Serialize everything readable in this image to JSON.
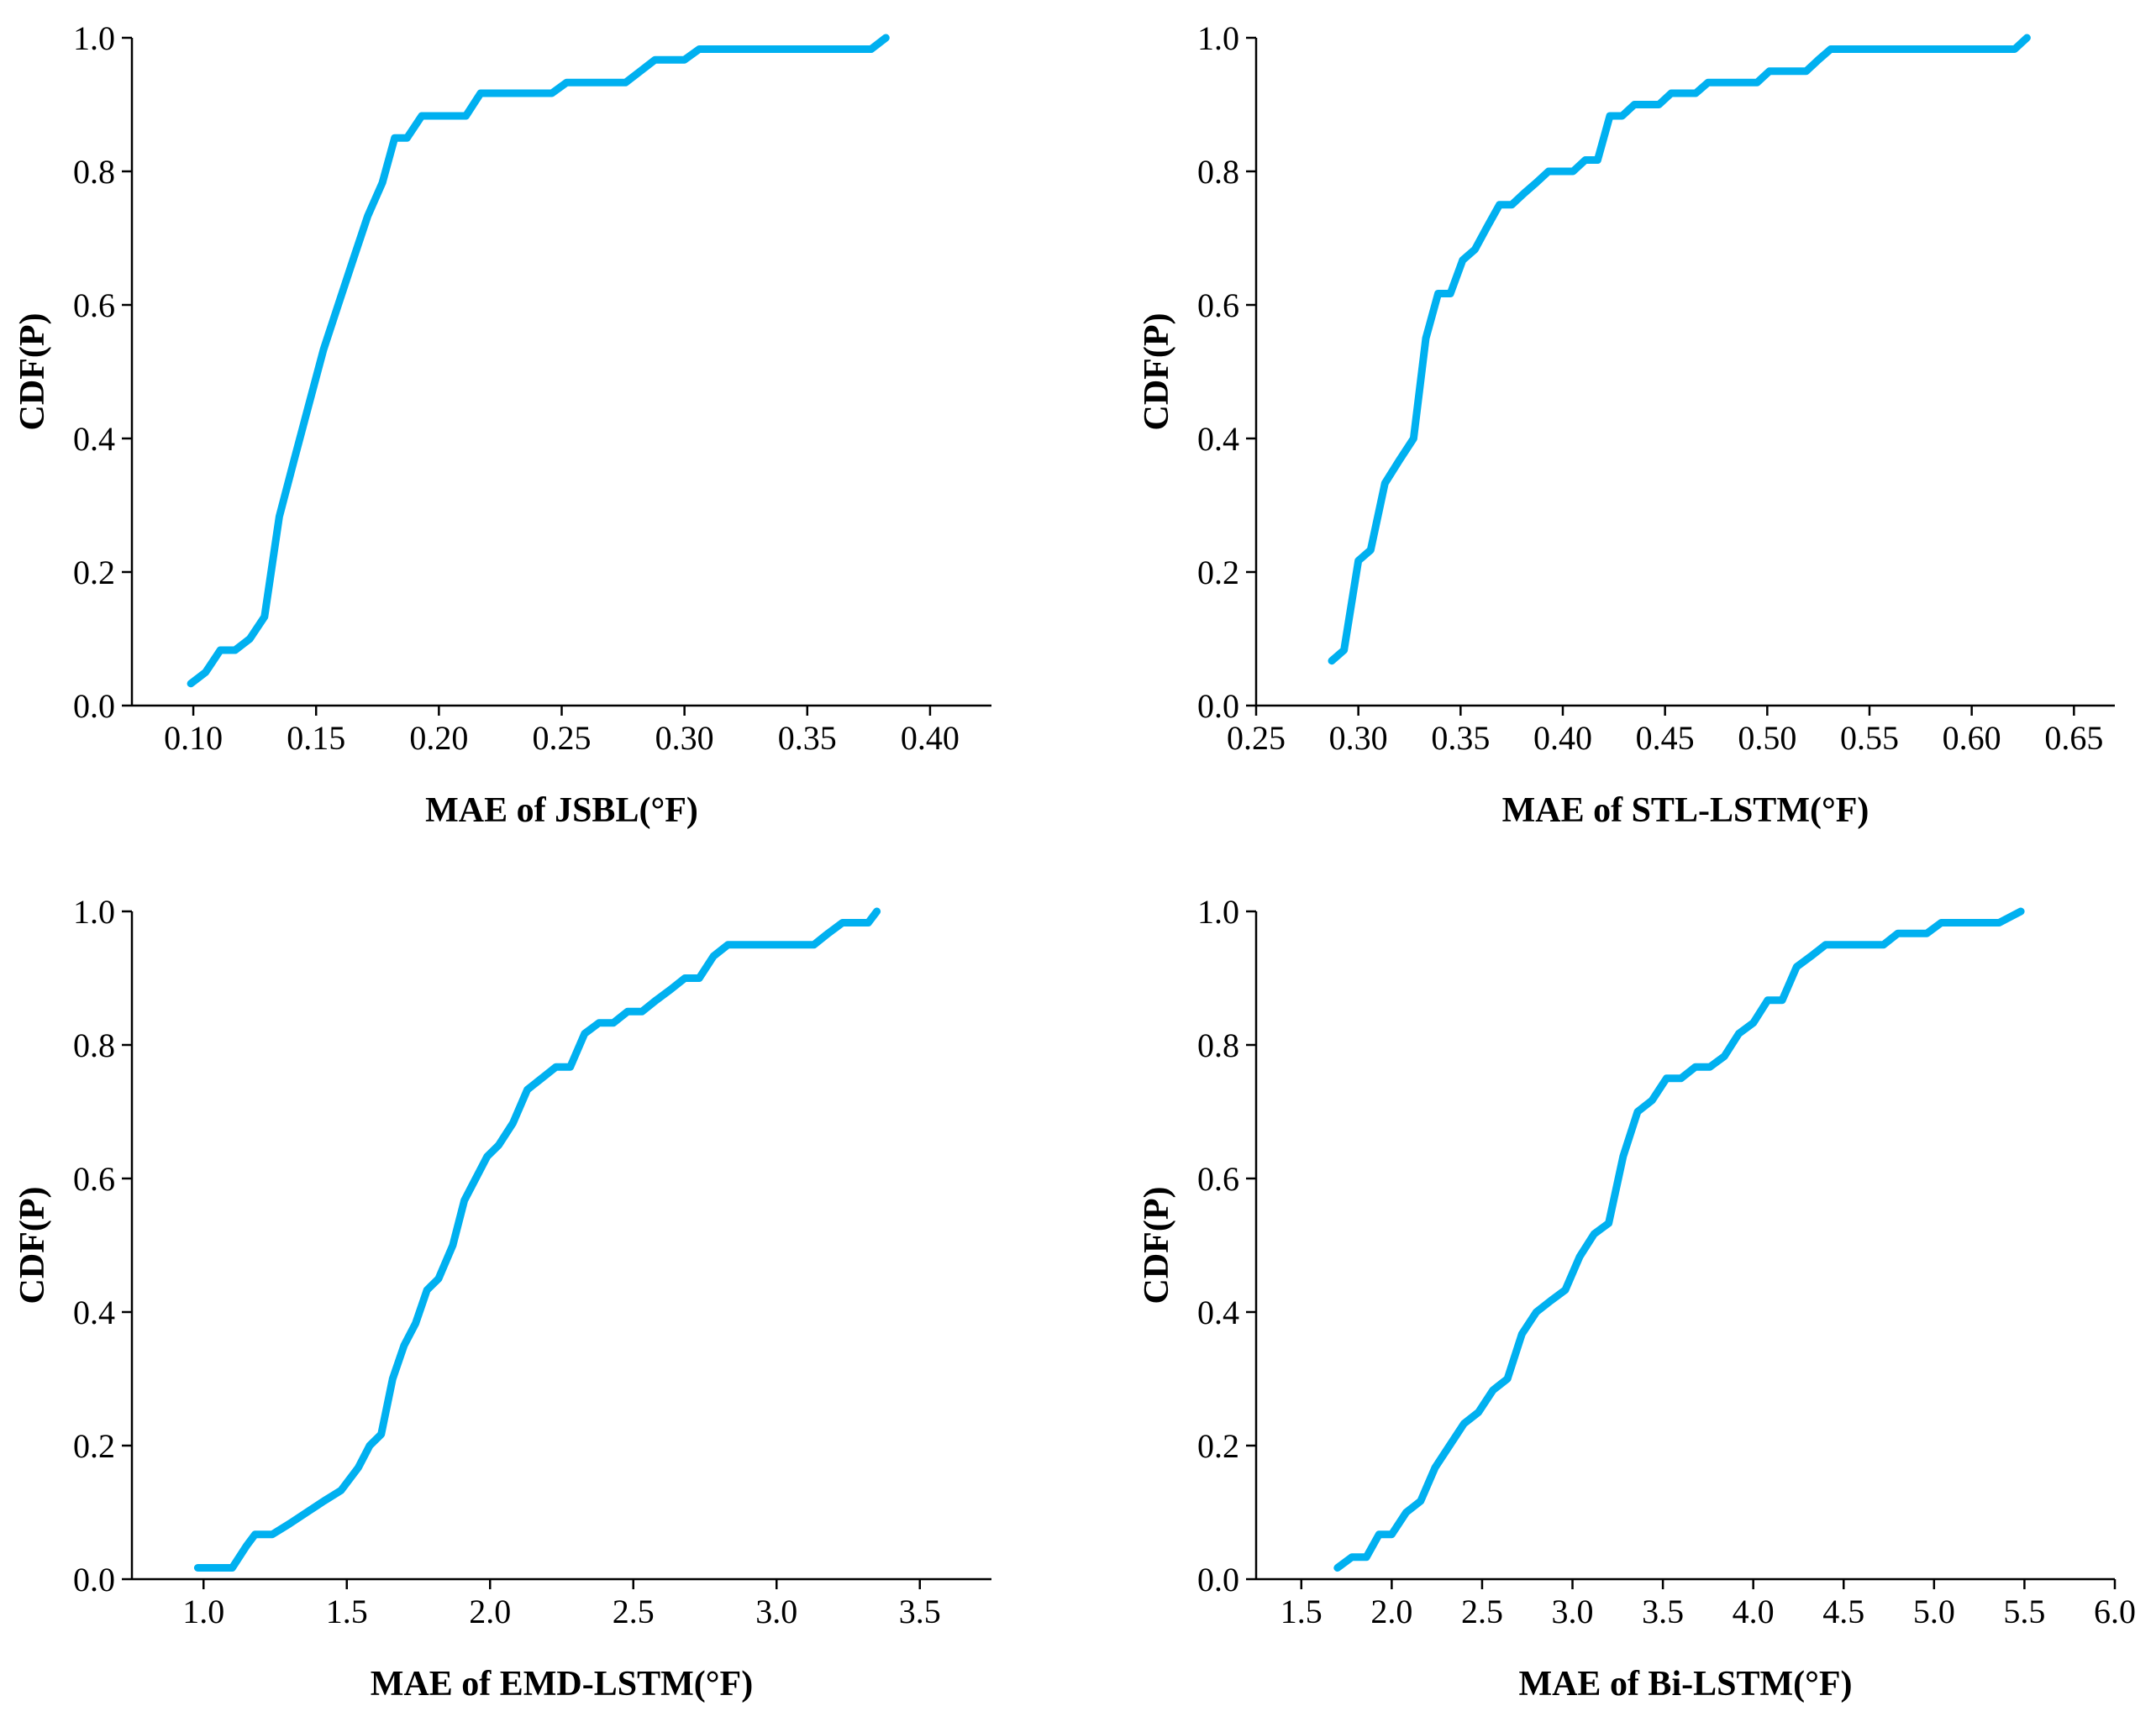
{
  "colors": {
    "series": "#00B0F0",
    "axis": "#000000",
    "background": "#FFFFFF"
  },
  "chart_data": [
    {
      "type": "line",
      "title": "",
      "xlabel": "MAE of JSBL(°F)",
      "ylabel": "CDF(P)",
      "xlim": [
        0.075,
        0.425
      ],
      "ylim": [
        0.0,
        1.0
      ],
      "xticks": [
        0.1,
        0.15,
        0.2,
        0.25,
        0.3,
        0.35,
        0.4
      ],
      "xtick_labels": [
        "0.10",
        "0.15",
        "0.20",
        "0.25",
        "0.30",
        "0.35",
        "0.40"
      ],
      "yticks": [
        0.0,
        0.2,
        0.4,
        0.6,
        0.8,
        1.0
      ],
      "ytick_labels": [
        "0.0",
        "0.2",
        "0.4",
        "0.6",
        "0.8",
        "1.0"
      ],
      "grid": false,
      "series": [
        {
          "name": "JSBL",
          "x": [
            0.099,
            0.105,
            0.111,
            0.117,
            0.123,
            0.129,
            0.135,
            0.141,
            0.147,
            0.153,
            0.159,
            0.165,
            0.171,
            0.177,
            0.182,
            0.187,
            0.193,
            0.205,
            0.211,
            0.217,
            0.229,
            0.241,
            0.246,
            0.252,
            0.264,
            0.276,
            0.288,
            0.3,
            0.306,
            0.32,
            0.34,
            0.36,
            0.376,
            0.382
          ],
          "y": [
            0.033,
            0.05,
            0.083,
            0.083,
            0.1,
            0.133,
            0.283,
            0.367,
            0.45,
            0.533,
            0.6,
            0.667,
            0.733,
            0.783,
            0.85,
            0.85,
            0.883,
            0.883,
            0.883,
            0.917,
            0.917,
            0.917,
            0.917,
            0.933,
            0.933,
            0.933,
            0.967,
            0.967,
            0.983,
            0.983,
            0.983,
            0.983,
            0.983,
            1.0
          ]
        }
      ]
    },
    {
      "type": "line",
      "title": "",
      "xlabel": "MAE of STL-LSTM(°F)",
      "ylabel": "CDF(P)",
      "xlim": [
        0.25,
        0.67
      ],
      "ylim": [
        0.0,
        1.0
      ],
      "xticks": [
        0.25,
        0.3,
        0.35,
        0.4,
        0.45,
        0.5,
        0.55,
        0.6,
        0.65
      ],
      "xtick_labels": [
        "0.25",
        "0.30",
        "0.35",
        "0.40",
        "0.45",
        "0.50",
        "0.55",
        "0.60",
        "0.65"
      ],
      "yticks": [
        0.0,
        0.2,
        0.4,
        0.6,
        0.8,
        1.0
      ],
      "ytick_labels": [
        "0.0",
        "0.2",
        "0.4",
        "0.6",
        "0.8",
        "1.0"
      ],
      "grid": false,
      "series": [
        {
          "name": "STL-LSTM",
          "x": [
            0.287,
            0.293,
            0.3,
            0.306,
            0.313,
            0.32,
            0.327,
            0.333,
            0.339,
            0.345,
            0.351,
            0.357,
            0.363,
            0.369,
            0.375,
            0.381,
            0.387,
            0.393,
            0.399,
            0.405,
            0.411,
            0.417,
            0.423,
            0.429,
            0.435,
            0.441,
            0.447,
            0.453,
            0.459,
            0.465,
            0.471,
            0.477,
            0.483,
            0.489,
            0.495,
            0.501,
            0.513,
            0.519,
            0.525,
            0.531,
            0.537,
            0.543,
            0.555,
            0.561,
            0.567,
            0.573,
            0.585,
            0.597,
            0.609,
            0.621,
            0.627
          ],
          "y": [
            0.067,
            0.083,
            0.217,
            0.233,
            0.333,
            0.367,
            0.4,
            0.55,
            0.617,
            0.617,
            0.667,
            0.683,
            0.717,
            0.75,
            0.75,
            0.767,
            0.783,
            0.8,
            0.8,
            0.8,
            0.817,
            0.817,
            0.883,
            0.883,
            0.9,
            0.9,
            0.9,
            0.917,
            0.917,
            0.917,
            0.933,
            0.933,
            0.933,
            0.933,
            0.933,
            0.95,
            0.95,
            0.95,
            0.967,
            0.983,
            0.983,
            0.983,
            0.983,
            0.983,
            0.983,
            0.983,
            0.983,
            0.983,
            0.983,
            0.983,
            1.0
          ]
        }
      ]
    },
    {
      "type": "line",
      "title": "",
      "xlabel": "MAE of EMD-LSTM(°F)",
      "ylabel": "CDF(P)",
      "xlim": [
        0.75,
        3.75
      ],
      "ylim": [
        0.0,
        1.0
      ],
      "xticks": [
        1.0,
        1.5,
        2.0,
        2.5,
        3.0,
        3.5
      ],
      "xtick_labels": [
        "1.0",
        "1.5",
        "2.0",
        "2.5",
        "3.0",
        "3.5"
      ],
      "yticks": [
        0.0,
        0.2,
        0.4,
        0.6,
        0.8,
        1.0
      ],
      "ytick_labels": [
        "0.0",
        "0.2",
        "0.4",
        "0.6",
        "0.8",
        "1.0"
      ],
      "grid": false,
      "series": [
        {
          "name": "EMD-LSTM",
          "x": [
            0.98,
            1.1,
            1.15,
            1.18,
            1.24,
            1.3,
            1.36,
            1.42,
            1.48,
            1.54,
            1.58,
            1.62,
            1.66,
            1.7,
            1.74,
            1.78,
            1.82,
            1.87,
            1.91,
            1.95,
            1.99,
            2.03,
            2.08,
            2.13,
            2.18,
            2.23,
            2.28,
            2.33,
            2.38,
            2.43,
            2.48,
            2.53,
            2.58,
            2.63,
            2.68,
            2.73,
            2.78,
            2.83,
            2.88,
            2.93,
            2.98,
            3.03,
            3.08,
            3.13,
            3.18,
            3.23,
            3.28,
            3.32,
            3.35
          ],
          "y": [
            0.017,
            0.017,
            0.05,
            0.067,
            0.067,
            0.083,
            0.1,
            0.117,
            0.133,
            0.167,
            0.2,
            0.217,
            0.3,
            0.35,
            0.383,
            0.433,
            0.45,
            0.5,
            0.567,
            0.6,
            0.633,
            0.65,
            0.683,
            0.733,
            0.75,
            0.767,
            0.767,
            0.817,
            0.833,
            0.833,
            0.85,
            0.85,
            0.867,
            0.883,
            0.9,
            0.9,
            0.933,
            0.95,
            0.95,
            0.95,
            0.95,
            0.95,
            0.95,
            0.95,
            0.967,
            0.983,
            0.983,
            0.983,
            1.0
          ]
        }
      ]
    },
    {
      "type": "line",
      "title": "",
      "xlabel": "MAE of Bi-LSTM(°F)",
      "ylabel": "CDF(P)",
      "xlim": [
        1.25,
        6.0
      ],
      "ylim": [
        0.0,
        1.0
      ],
      "xticks": [
        1.5,
        2.0,
        2.5,
        3.0,
        3.5,
        4.0,
        4.5,
        5.0,
        5.5,
        6.0
      ],
      "xtick_labels": [
        "1.5",
        "2.0",
        "2.5",
        "3.0",
        "3.5",
        "4.0",
        "4.5",
        "5.0",
        "5.5",
        "6.0"
      ],
      "yticks": [
        0.0,
        0.2,
        0.4,
        0.6,
        0.8,
        1.0
      ],
      "ytick_labels": [
        "0.0",
        "0.2",
        "0.4",
        "0.6",
        "0.8",
        "1.0"
      ],
      "grid": false,
      "series": [
        {
          "name": "Bi-LSTM",
          "x": [
            1.7,
            1.78,
            1.86,
            1.93,
            2.0,
            2.08,
            2.16,
            2.24,
            2.32,
            2.4,
            2.48,
            2.56,
            2.64,
            2.72,
            2.8,
            2.88,
            2.96,
            3.04,
            3.12,
            3.2,
            3.28,
            3.36,
            3.44,
            3.52,
            3.6,
            3.68,
            3.76,
            3.84,
            3.92,
            4.0,
            4.08,
            4.16,
            4.24,
            4.32,
            4.4,
            4.56,
            4.72,
            4.8,
            4.96,
            5.04,
            5.2,
            5.36,
            5.48
          ],
          "y": [
            0.017,
            0.033,
            0.033,
            0.067,
            0.067,
            0.1,
            0.117,
            0.167,
            0.2,
            0.233,
            0.25,
            0.283,
            0.3,
            0.367,
            0.4,
            0.417,
            0.433,
            0.483,
            0.517,
            0.533,
            0.633,
            0.7,
            0.717,
            0.75,
            0.75,
            0.767,
            0.767,
            0.783,
            0.817,
            0.833,
            0.867,
            0.867,
            0.917,
            0.933,
            0.95,
            0.95,
            0.95,
            0.967,
            0.967,
            0.983,
            0.983,
            0.983,
            1.0
          ]
        }
      ]
    }
  ]
}
